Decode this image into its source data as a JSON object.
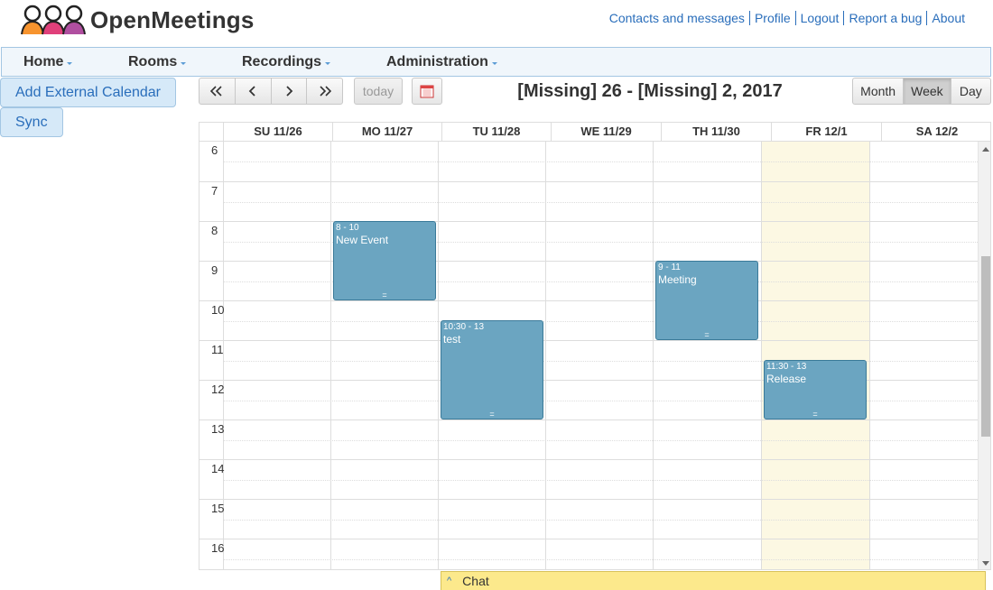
{
  "app": {
    "title": "OpenMeetings"
  },
  "toplinks": [
    "Contacts and messages",
    "Profile",
    "Logout",
    "Report a bug",
    "About"
  ],
  "menu": {
    "items": [
      "Home",
      "Rooms",
      "Recordings",
      "Administration"
    ]
  },
  "sidebar": {
    "add_external": "Add External Calendar",
    "sync": "Sync"
  },
  "toolbar": {
    "first": "«",
    "prev": "‹",
    "next": "›",
    "last": "»",
    "today": "today",
    "range_title": "[Missing] 26 - [Missing] 2, 2017",
    "views": [
      "Month",
      "Week",
      "Day"
    ],
    "active_view": "Week"
  },
  "calendar": {
    "days": [
      "SU 11/26",
      "MO 11/27",
      "TU 11/28",
      "WE 11/29",
      "TH 11/30",
      "FR 12/1",
      "SA 12/2"
    ],
    "today_index": 5,
    "hours": [
      "6",
      "7",
      "8",
      "9",
      "10",
      "11",
      "12",
      "13",
      "14",
      "15",
      "16"
    ],
    "events": [
      {
        "time": "8 - 10",
        "title": "New Event",
        "day": 1,
        "start": 8,
        "end": 10
      },
      {
        "time": "10:30 - 13",
        "title": "test",
        "day": 2,
        "start": 10.5,
        "end": 13
      },
      {
        "time": "9 - 11",
        "title": "Meeting",
        "day": 4,
        "start": 9,
        "end": 11
      },
      {
        "time": "11:30 - 13",
        "title": "Release",
        "day": 5,
        "start": 11.5,
        "end": 13
      }
    ],
    "resize_glyph": "="
  },
  "chat": {
    "label": "Chat",
    "caret": "^"
  },
  "colors": {
    "event_bg": "#6ba5c1",
    "today_bg": "#fcf8e3",
    "link": "#2a6ebb",
    "chat_bg": "#fce98c"
  }
}
